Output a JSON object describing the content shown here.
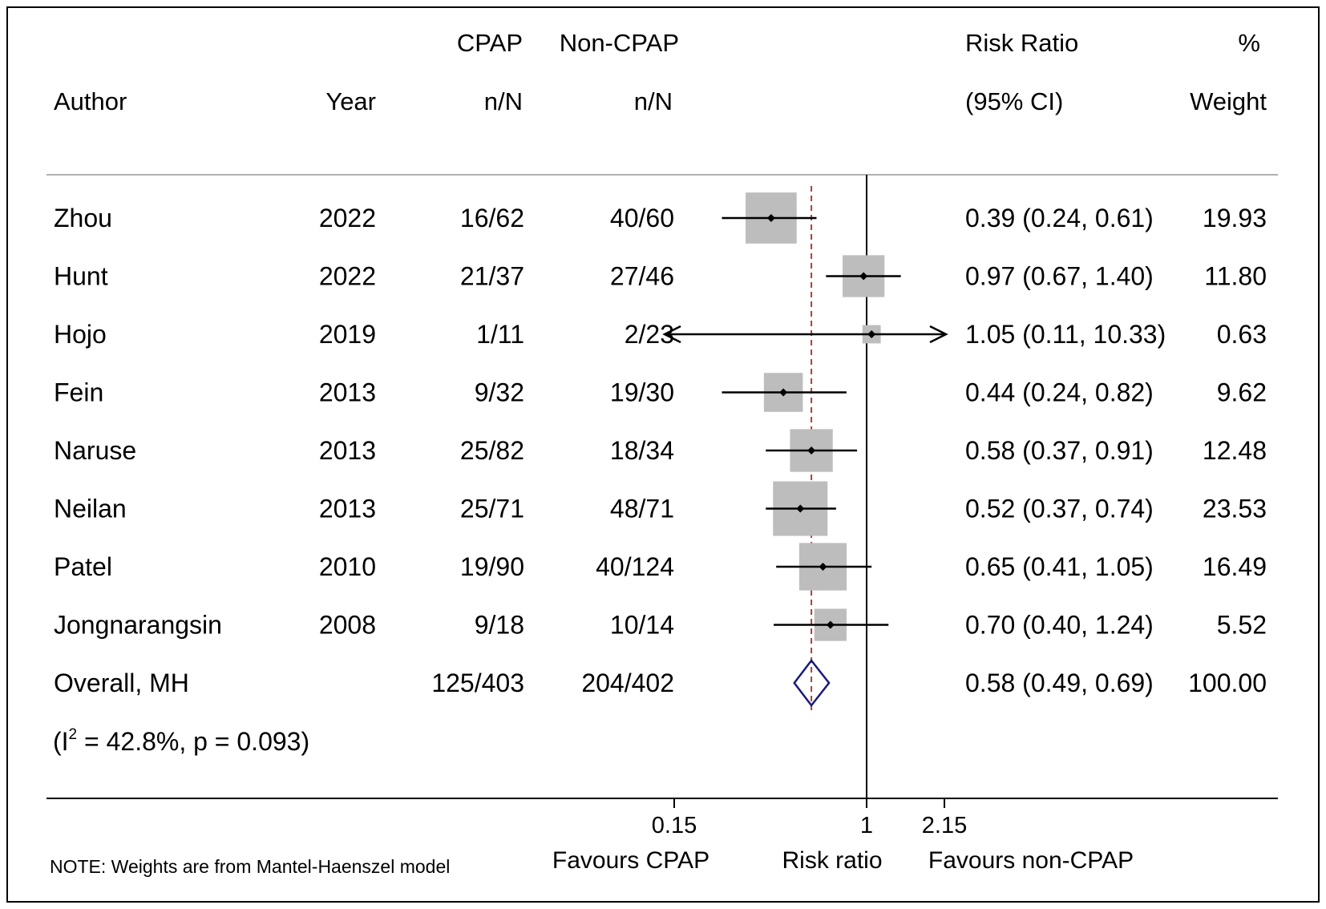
{
  "chart_data": {
    "type": "forest",
    "header": {
      "row1": {
        "cpap": "CPAP",
        "noncpap": "Non-CPAP",
        "rr": "Risk Ratio",
        "weight": "%"
      },
      "row2": {
        "author": "Author",
        "year": "Year",
        "cpap": "n/N",
        "noncpap": "n/N",
        "rr": "(95% CI)",
        "weight": "Weight"
      }
    },
    "studies": [
      {
        "author": "Zhou",
        "year": "2022",
        "cpap": "16/62",
        "noncpap": "40/60",
        "rr": 0.39,
        "lo": 0.24,
        "hi": 0.61,
        "rr_text": "0.39 (0.24, 0.61)",
        "weight": 19.93,
        "weight_text": "19.93"
      },
      {
        "author": "Hunt",
        "year": "2022",
        "cpap": "21/37",
        "noncpap": "27/46",
        "rr": 0.97,
        "lo": 0.67,
        "hi": 1.4,
        "rr_text": "0.97 (0.67, 1.40)",
        "weight": 11.8,
        "weight_text": "11.80"
      },
      {
        "author": "Hojo",
        "year": "2019",
        "cpap": "1/11",
        "noncpap": "2/23",
        "rr": 1.05,
        "lo": 0.11,
        "hi": 10.33,
        "rr_text": "1.05 (0.11, 10.33)",
        "weight": 0.63,
        "weight_text": "0.63"
      },
      {
        "author": "Fein",
        "year": "2013",
        "cpap": "9/32",
        "noncpap": "19/30",
        "rr": 0.44,
        "lo": 0.24,
        "hi": 0.82,
        "rr_text": "0.44 (0.24, 0.82)",
        "weight": 9.62,
        "weight_text": "9.62"
      },
      {
        "author": "Naruse",
        "year": "2013",
        "cpap": "25/82",
        "noncpap": "18/34",
        "rr": 0.58,
        "lo": 0.37,
        "hi": 0.91,
        "rr_text": "0.58 (0.37, 0.91)",
        "weight": 12.48,
        "weight_text": "12.48"
      },
      {
        "author": "Neilan",
        "year": "2013",
        "cpap": "25/71",
        "noncpap": "48/71",
        "rr": 0.52,
        "lo": 0.37,
        "hi": 0.74,
        "rr_text": "0.52 (0.37, 0.74)",
        "weight": 23.53,
        "weight_text": "23.53"
      },
      {
        "author": "Patel",
        "year": "2010",
        "cpap": "19/90",
        "noncpap": "40/124",
        "rr": 0.65,
        "lo": 0.41,
        "hi": 1.05,
        "rr_text": "0.65 (0.41, 1.05)",
        "weight": 16.49,
        "weight_text": "16.49"
      },
      {
        "author": "Jongnarangsin",
        "year": "2008",
        "cpap": "9/18",
        "noncpap": "10/14",
        "rr": 0.7,
        "lo": 0.4,
        "hi": 1.24,
        "rr_text": "0.70 (0.40, 1.24)",
        "weight": 5.52,
        "weight_text": "5.52"
      }
    ],
    "overall": {
      "author": "Overall, MH",
      "cpap": "125/403",
      "noncpap": "204/402",
      "rr": 0.58,
      "lo": 0.49,
      "hi": 0.69,
      "rr_text": "0.58 (0.49, 0.69)",
      "weight_text": "100.00"
    },
    "heterogeneity": {
      "prefix": "(I",
      "sup": "2",
      "rest": " = 42.8%, p = 0.093)"
    },
    "x_axis": {
      "scale": "log",
      "ticks": [
        0.15,
        1,
        2.15
      ],
      "tick_labels": [
        "0.15",
        "1",
        "2.15"
      ],
      "range": [
        0.15,
        2.15
      ],
      "null_line": 1
    },
    "labels": {
      "left": "Favours CPAP",
      "center": "Risk ratio",
      "right": "Favours non-CPAP"
    },
    "note": "NOTE: Weights are from Mantel-Haenszel model",
    "colors": {
      "box": "#bdbdbd",
      "diamond": "#1a1a7a",
      "dashed": "#a0443f",
      "line": "#000000"
    }
  }
}
